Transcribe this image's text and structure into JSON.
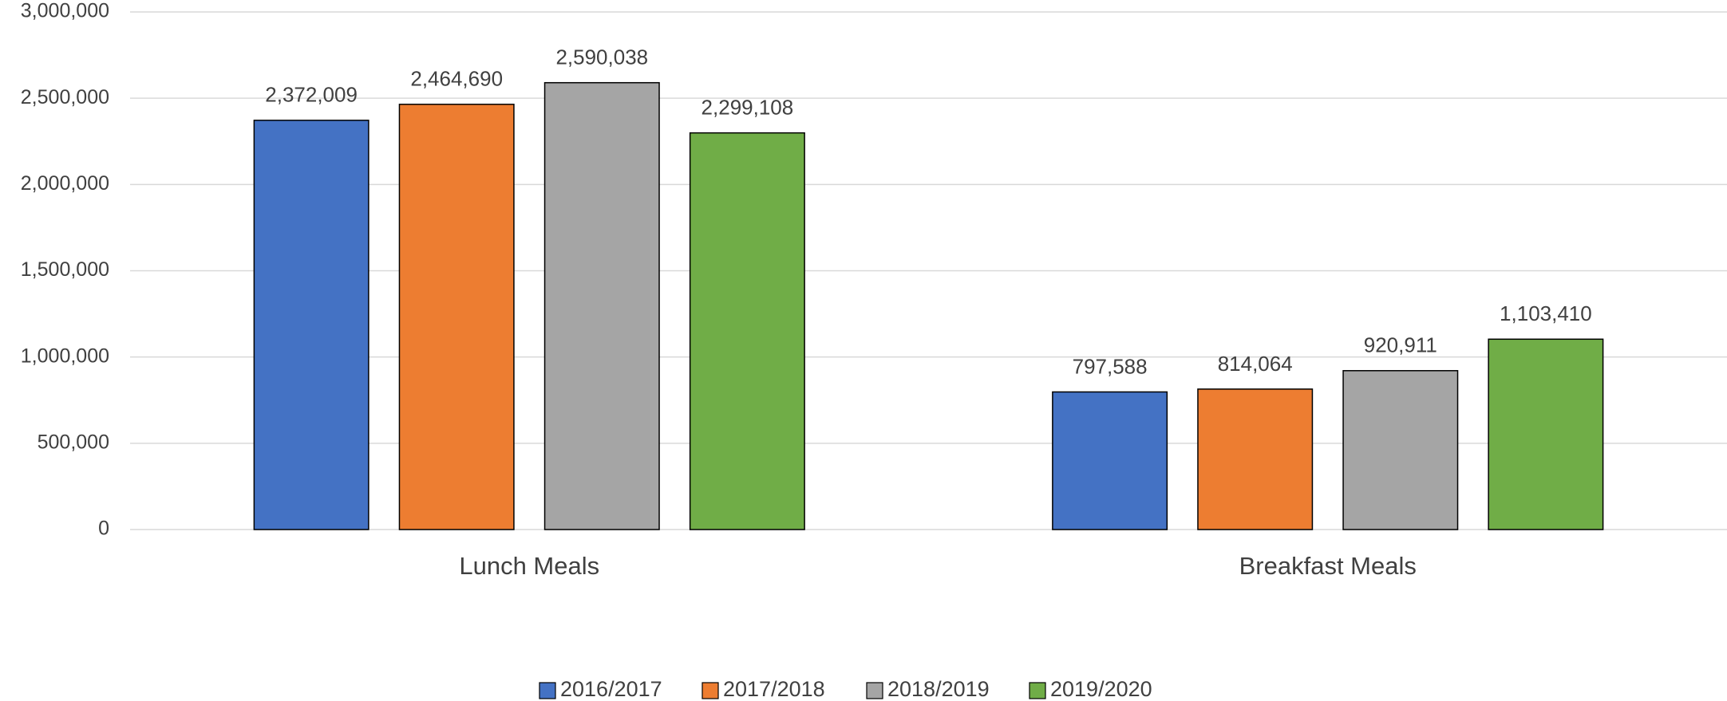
{
  "chart_data": {
    "type": "bar",
    "categories": [
      "Lunch Meals",
      "Breakfast Meals"
    ],
    "series": [
      {
        "name": "2016/2017",
        "color": "#4472c4",
        "values": [
          2372009,
          797588
        ],
        "value_labels": [
          "2,372,009",
          "797,588"
        ]
      },
      {
        "name": "2017/2018",
        "color": "#ed7d31",
        "values": [
          2464690,
          814064
        ],
        "value_labels": [
          "2,464,690",
          "814,064"
        ]
      },
      {
        "name": "2018/2019",
        "color": "#a5a5a5",
        "values": [
          2590038,
          920911
        ],
        "value_labels": [
          "2,590,038",
          "920,911"
        ]
      },
      {
        "name": "2019/2020",
        "color": "#70ad47",
        "values": [
          2299108,
          1103410
        ],
        "value_labels": [
          "2,299,108",
          "1,103,410"
        ]
      }
    ],
    "ylim": [
      0,
      3000000
    ],
    "yticks": [
      0,
      {
        "value": 500000,
        "label": "500,000"
      },
      {
        "value": 1000000,
        "label": "1,000,000"
      },
      {
        "value": 1500000,
        "label": "1,500,000"
      },
      {
        "value": 2000000,
        "label": "2,000,000"
      },
      {
        "value": 2500000,
        "label": "2,500,000"
      },
      {
        "value": 3000000,
        "label": "3,000,000"
      }
    ],
    "grid": true,
    "legend": "bottom"
  }
}
